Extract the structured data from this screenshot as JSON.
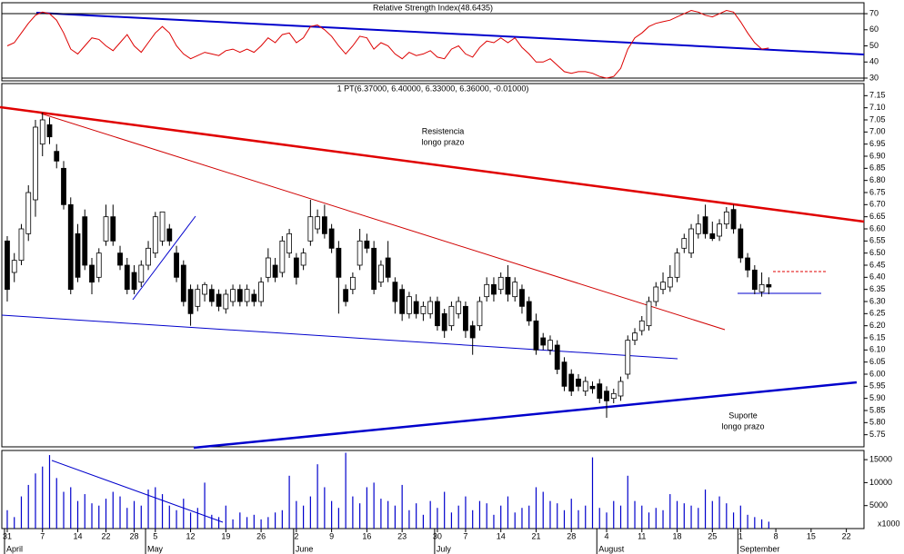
{
  "chart_data": [
    {
      "type": "line",
      "title": "Relative Strength Index(48.6435)",
      "color": "#dd0000",
      "values": [
        50,
        52,
        58,
        64,
        69,
        71,
        70,
        66,
        58,
        48,
        45,
        50,
        55,
        54,
        50,
        47,
        52,
        57,
        50,
        46,
        52,
        58,
        62,
        58,
        50,
        45,
        42,
        44,
        46,
        45,
        44,
        47,
        48,
        46,
        48,
        46,
        50,
        55,
        52,
        57,
        58,
        52,
        55,
        62,
        63,
        60,
        56,
        50,
        45,
        50,
        56,
        55,
        48,
        52,
        50,
        45,
        42,
        46,
        44,
        45,
        47,
        43,
        42,
        48,
        50,
        45,
        43,
        49,
        53,
        52,
        55,
        52,
        55,
        49,
        45,
        40,
        40,
        42,
        38,
        34,
        33,
        34,
        34,
        33,
        31,
        30,
        31,
        36,
        48,
        55,
        58,
        62,
        64,
        65,
        66,
        68,
        70,
        72,
        71,
        69,
        68,
        70,
        72,
        71,
        65,
        58,
        52,
        48,
        48.6435
      ],
      "ylim": [
        28.3,
        76.8
      ],
      "yticks": [
        30,
        40,
        50,
        60,
        70
      ]
    },
    {
      "type": "candlestick",
      "title": "1 PT(6.37000, 6.40000, 6.33000, 6.36000, -0.01000)",
      "up_color": "#ffffff",
      "down_color": "#000000",
      "ohlc": [
        [
          6.55,
          6.57,
          6.3,
          6.35
        ],
        [
          6.42,
          6.5,
          6.38,
          6.47
        ],
        [
          6.47,
          6.62,
          6.45,
          6.6
        ],
        [
          6.58,
          6.78,
          6.55,
          6.75
        ],
        [
          6.72,
          7.05,
          6.65,
          7.02
        ],
        [
          6.95,
          7.08,
          6.9,
          7.05
        ],
        [
          7.03,
          7.06,
          6.95,
          6.98
        ],
        [
          6.92,
          6.95,
          6.85,
          6.88
        ],
        [
          6.85,
          6.88,
          6.68,
          6.7
        ],
        [
          6.7,
          6.73,
          6.33,
          6.35
        ],
        [
          6.58,
          6.62,
          6.38,
          6.4
        ],
        [
          6.65,
          6.68,
          6.43,
          6.45
        ],
        [
          6.45,
          6.48,
          6.33,
          6.38
        ],
        [
          6.4,
          6.52,
          6.38,
          6.5
        ],
        [
          6.55,
          6.7,
          6.53,
          6.65
        ],
        [
          6.65,
          6.7,
          6.53,
          6.55
        ],
        [
          6.5,
          6.53,
          6.43,
          6.45
        ],
        [
          6.45,
          6.48,
          6.33,
          6.35
        ],
        [
          6.42,
          6.45,
          6.33,
          6.35
        ],
        [
          6.38,
          6.47,
          6.36,
          6.45
        ],
        [
          6.45,
          6.55,
          6.43,
          6.52
        ],
        [
          6.5,
          6.67,
          6.48,
          6.65
        ],
        [
          6.55,
          6.67,
          6.53,
          6.67
        ],
        [
          6.6,
          6.62,
          6.53,
          6.55
        ],
        [
          6.5,
          6.53,
          6.38,
          6.4
        ],
        [
          6.45,
          6.47,
          6.28,
          6.3
        ],
        [
          6.35,
          6.37,
          6.2,
          6.25
        ],
        [
          6.28,
          6.37,
          6.26,
          6.35
        ],
        [
          6.33,
          6.38,
          6.3,
          6.37
        ],
        [
          6.35,
          6.37,
          6.28,
          6.3
        ],
        [
          6.33,
          6.35,
          6.26,
          6.28
        ],
        [
          6.27,
          6.35,
          6.25,
          6.33
        ],
        [
          6.3,
          6.37,
          6.28,
          6.35
        ],
        [
          6.35,
          6.37,
          6.28,
          6.3
        ],
        [
          6.3,
          6.37,
          6.28,
          6.35
        ],
        [
          6.33,
          6.35,
          6.28,
          6.3
        ],
        [
          6.3,
          6.4,
          6.28,
          6.38
        ],
        [
          6.4,
          6.52,
          6.38,
          6.48
        ],
        [
          6.45,
          6.48,
          6.38,
          6.4
        ],
        [
          6.42,
          6.57,
          6.4,
          6.55
        ],
        [
          6.5,
          6.6,
          6.48,
          6.58
        ],
        [
          6.48,
          6.5,
          6.37,
          6.4
        ],
        [
          6.45,
          6.52,
          6.43,
          6.5
        ],
        [
          6.55,
          6.72,
          6.53,
          6.65
        ],
        [
          6.6,
          6.68,
          6.58,
          6.65
        ],
        [
          6.65,
          6.7,
          6.56,
          6.58
        ],
        [
          6.6,
          6.62,
          6.5,
          6.52
        ],
        [
          6.52,
          6.55,
          6.25,
          6.4
        ],
        [
          6.35,
          6.37,
          6.28,
          6.3
        ],
        [
          6.35,
          6.42,
          6.33,
          6.4
        ],
        [
          6.45,
          6.6,
          6.43,
          6.55
        ],
        [
          6.55,
          6.58,
          6.5,
          6.52
        ],
        [
          6.52,
          6.55,
          6.33,
          6.35
        ],
        [
          6.38,
          6.47,
          6.36,
          6.45
        ],
        [
          6.48,
          6.55,
          6.38,
          6.4
        ],
        [
          6.38,
          6.4,
          6.25,
          6.3
        ],
        [
          6.35,
          6.37,
          6.22,
          6.25
        ],
        [
          6.25,
          6.34,
          6.23,
          6.32
        ],
        [
          6.3,
          6.33,
          6.23,
          6.25
        ],
        [
          6.25,
          6.3,
          6.22,
          6.28
        ],
        [
          6.25,
          6.32,
          6.23,
          6.3
        ],
        [
          6.3,
          6.32,
          6.18,
          6.2
        ],
        [
          6.25,
          6.27,
          6.15,
          6.18
        ],
        [
          6.2,
          6.3,
          6.18,
          6.28
        ],
        [
          6.25,
          6.32,
          6.23,
          6.3
        ],
        [
          6.28,
          6.3,
          6.15,
          6.18
        ],
        [
          6.2,
          6.22,
          6.08,
          6.15
        ],
        [
          6.2,
          6.32,
          6.18,
          6.3
        ],
        [
          6.32,
          6.4,
          6.3,
          6.37
        ],
        [
          6.37,
          6.4,
          6.3,
          6.33
        ],
        [
          6.35,
          6.42,
          6.33,
          6.4
        ],
        [
          6.4,
          6.45,
          6.3,
          6.33
        ],
        [
          6.32,
          6.4,
          6.3,
          6.38
        ],
        [
          6.35,
          6.37,
          6.25,
          6.28
        ],
        [
          6.3,
          6.32,
          6.2,
          6.22
        ],
        [
          6.22,
          6.25,
          6.08,
          6.1
        ],
        [
          6.15,
          6.17,
          6.1,
          6.12
        ],
        [
          6.1,
          6.16,
          6.08,
          6.14
        ],
        [
          6.12,
          6.14,
          6.0,
          6.02
        ],
        [
          6.05,
          6.07,
          5.93,
          5.95
        ],
        [
          6.0,
          6.02,
          5.91,
          5.93
        ],
        [
          5.98,
          6.0,
          5.93,
          5.95
        ],
        [
          5.93,
          5.99,
          5.91,
          5.97
        ],
        [
          5.95,
          5.97,
          5.92,
          5.94
        ],
        [
          5.96,
          5.98,
          5.88,
          5.9
        ],
        [
          5.93,
          5.95,
          5.82,
          5.89
        ],
        [
          5.9,
          5.94,
          5.88,
          5.92
        ],
        [
          5.91,
          5.99,
          5.89,
          5.97
        ],
        [
          6.0,
          6.16,
          5.98,
          6.14
        ],
        [
          6.14,
          6.19,
          6.12,
          6.17
        ],
        [
          6.18,
          6.24,
          6.16,
          6.22
        ],
        [
          6.2,
          6.32,
          6.18,
          6.3
        ],
        [
          6.3,
          6.38,
          6.28,
          6.36
        ],
        [
          6.35,
          6.42,
          6.33,
          6.38
        ],
        [
          6.36,
          6.45,
          6.34,
          6.4
        ],
        [
          6.4,
          6.52,
          6.38,
          6.5
        ],
        [
          6.52,
          6.58,
          6.5,
          6.56
        ],
        [
          6.5,
          6.62,
          6.48,
          6.6
        ],
        [
          6.58,
          6.66,
          6.56,
          6.62
        ],
        [
          6.65,
          6.7,
          6.56,
          6.58
        ],
        [
          6.58,
          6.63,
          6.55,
          6.56
        ],
        [
          6.57,
          6.64,
          6.55,
          6.62
        ],
        [
          6.62,
          6.69,
          6.6,
          6.67
        ],
        [
          6.68,
          6.7,
          6.58,
          6.6
        ],
        [
          6.6,
          6.62,
          6.46,
          6.48
        ],
        [
          6.48,
          6.5,
          6.4,
          6.43
        ],
        [
          6.43,
          6.45,
          6.33,
          6.35
        ],
        [
          6.34,
          6.42,
          6.32,
          6.37
        ],
        [
          6.37,
          6.4,
          6.33,
          6.36
        ]
      ],
      "ylim": [
        5.7,
        7.2
      ],
      "yticks": [
        5.75,
        {
          "value": 5.8,
          "label": "5.80"
        },
        5.85,
        {
          "value": 5.9,
          "label": "5.90"
        },
        5.95,
        {
          "value": 6,
          "label": "6.00"
        },
        6.05,
        {
          "value": 6.1,
          "label": "6.10"
        },
        6.15,
        {
          "value": 6.2,
          "label": "6.20"
        },
        6.25,
        {
          "value": 6.3,
          "label": "6.30"
        },
        6.35,
        {
          "value": 6.4,
          "label": "6.40"
        },
        6.45,
        {
          "value": 6.5,
          "label": "6.50"
        },
        6.55,
        {
          "value": 6.6,
          "label": "6.60"
        },
        6.65,
        {
          "value": 6.7,
          "label": "6.70"
        },
        6.75,
        {
          "value": 6.8,
          "label": "6.80"
        },
        6.85,
        {
          "value": 6.9,
          "label": "6.90"
        },
        6.95,
        {
          "value": 7,
          "label": "7.00"
        },
        7.05,
        {
          "value": 7.1,
          "label": "7.10"
        },
        7.15
      ],
      "annotations": [
        {
          "lines": [
            "Resistencia",
            "longo prazo"
          ],
          "color": "#cc0000"
        },
        {
          "lines": [
            "Suporte",
            "longo prazo"
          ],
          "color": "#0000aa"
        }
      ]
    },
    {
      "type": "bar",
      "color": "#0000cc",
      "unit_label": "x1000",
      "values": [
        4000,
        2500,
        7000,
        9500,
        12000,
        13500,
        16000,
        11000,
        8000,
        9000,
        6000,
        7500,
        5500,
        5000,
        6500,
        8000,
        7000,
        4500,
        6000,
        5000,
        8500,
        9000,
        7500,
        5000,
        4000,
        6500,
        3500,
        4500,
        10000,
        3000,
        2500,
        5000,
        2000,
        3500,
        2500,
        3000,
        2000,
        2500,
        3500,
        4000,
        11500,
        6000,
        5000,
        7000,
        14000,
        9000,
        6000,
        4500,
        16500,
        7000,
        5500,
        9000,
        10000,
        6500,
        6000,
        5000,
        9500,
        4000,
        5500,
        3000,
        6000,
        4500,
        8000,
        3500,
        5000,
        7000,
        4000,
        6000,
        5500,
        3000,
        5000,
        7000,
        3500,
        4500,
        5000,
        9000,
        8000,
        6000,
        5500,
        4000,
        6500,
        4000,
        5000,
        15500,
        4500,
        3500,
        6000,
        5000,
        11500,
        6000,
        5000,
        3500,
        4500,
        4000,
        7500,
        6000,
        5500,
        5000,
        4500,
        8500,
        6000,
        7000,
        5500,
        3500,
        5000,
        3000,
        2500,
        2000,
        1500
      ],
      "ylim": [
        0,
        17000
      ],
      "yticks": [
        5000,
        10000,
        15000
      ],
      "xlim": [
        -0.77,
        121.5
      ],
      "xticks": [
        {
          "value": 0,
          "label": "31"
        },
        {
          "value": 5,
          "label": "7"
        },
        {
          "value": 10,
          "label": "14"
        },
        {
          "value": 14,
          "label": "22"
        },
        {
          "value": 18,
          "label": "28"
        },
        {
          "value": 21,
          "label": "5"
        },
        {
          "value": 26,
          "label": "12"
        },
        {
          "value": 31,
          "label": "19"
        },
        {
          "value": 36,
          "label": "26"
        },
        {
          "value": 41,
          "label": "2"
        },
        {
          "value": 46,
          "label": "9"
        },
        {
          "value": 51,
          "label": "16"
        },
        {
          "value": 56,
          "label": "23"
        },
        {
          "value": 61,
          "label": "30"
        },
        {
          "value": 65,
          "label": "7"
        },
        {
          "value": 70,
          "label": "14"
        },
        {
          "value": 75,
          "label": "21"
        },
        {
          "value": 80,
          "label": "28"
        },
        {
          "value": 85,
          "label": "4"
        },
        {
          "value": 90,
          "label": "11"
        },
        {
          "value": 95,
          "label": "18"
        },
        {
          "value": 100,
          "label": "25"
        },
        {
          "value": 104,
          "label": "1"
        },
        {
          "value": 109,
          "label": "8"
        },
        {
          "value": 114,
          "label": "15"
        },
        {
          "value": 119,
          "label": "22"
        }
      ],
      "months": [
        {
          "value": 0,
          "label": "April"
        },
        {
          "value": 20,
          "label": "May"
        },
        {
          "value": 41,
          "label": "June"
        },
        {
          "value": 61,
          "label": "July"
        },
        {
          "value": 84,
          "label": "August"
        },
        {
          "value": 104,
          "label": "September"
        }
      ]
    }
  ]
}
